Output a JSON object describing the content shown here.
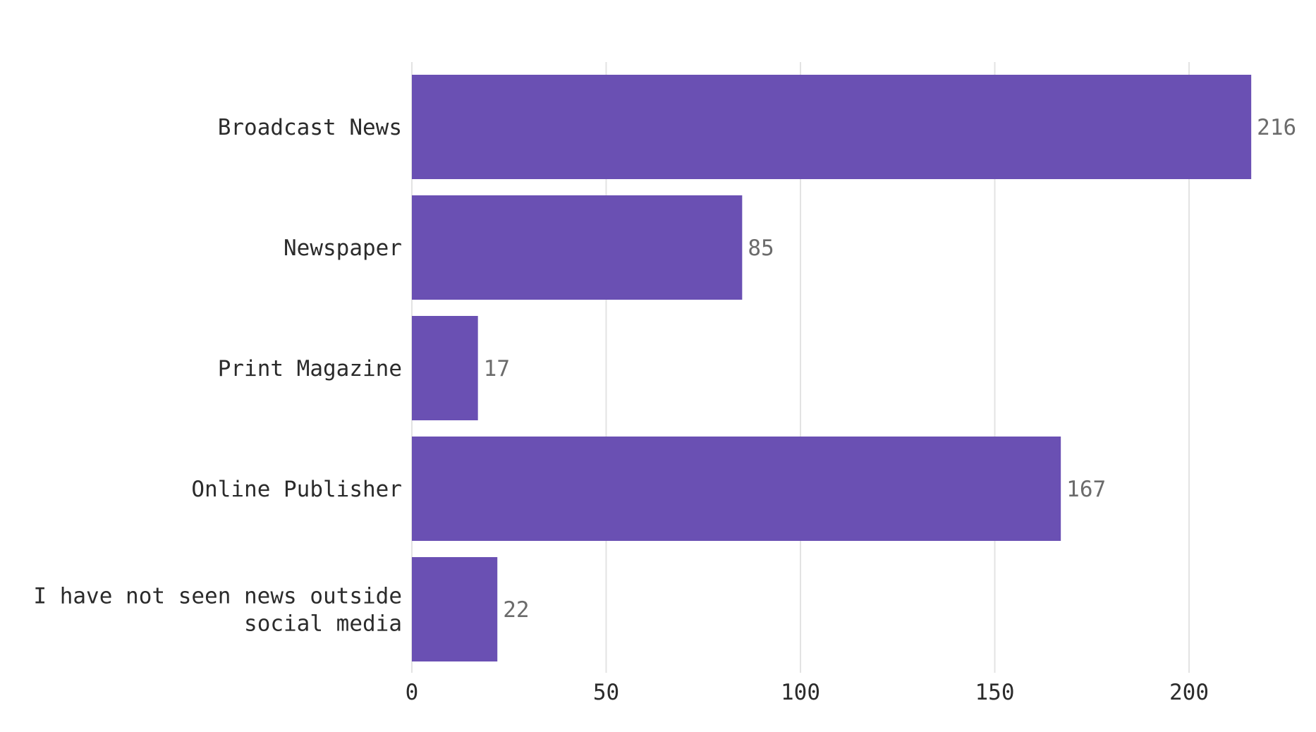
{
  "chart_data": {
    "type": "bar",
    "orientation": "horizontal",
    "categories": [
      "Broadcast News",
      "Newspaper",
      "Print Magazine",
      "Online Publisher",
      "I have not seen news outside social media"
    ],
    "category_label_lines": [
      [
        "Broadcast News"
      ],
      [
        "Newspaper"
      ],
      [
        "Print Magazine"
      ],
      [
        "Online Publisher"
      ],
      [
        "I have not seen news outside",
        "social media"
      ]
    ],
    "values": [
      216,
      85,
      17,
      167,
      22
    ],
    "value_labels": [
      "216",
      "85",
      "17",
      "167",
      "22"
    ],
    "xlim": [
      0,
      225
    ],
    "x_ticks": [
      0,
      50,
      100,
      150,
      200
    ],
    "x_tick_labels": [
      "0",
      "50",
      "100",
      "150",
      "200"
    ],
    "grid": true,
    "legend": "none",
    "bar_color": "#6a50b3",
    "title": "",
    "xlabel": "",
    "ylabel": ""
  }
}
